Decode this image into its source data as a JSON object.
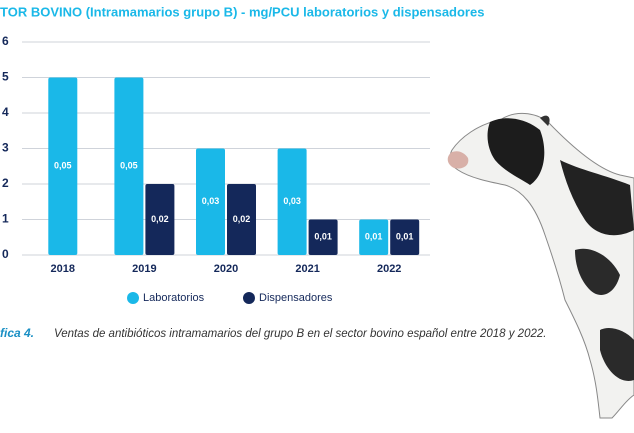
{
  "chart_data": {
    "type": "bar",
    "title": "TOR BOVINO (Intramamarios grupo B) - mg/PCU laboratorios y dispensadores",
    "categories": [
      "2018",
      "2019",
      "2020",
      "2021",
      "2022"
    ],
    "series": [
      {
        "name": "Laboratorios",
        "color": "#1ab8e8",
        "values": [
          0.05,
          0.05,
          0.03,
          0.03,
          0.01
        ],
        "value_labels": [
          "0,05",
          "0,05",
          "0,03",
          "0,03",
          "0,01"
        ]
      },
      {
        "name": "Dispensadores",
        "color": "#14285a",
        "values": [
          null,
          0.02,
          0.02,
          0.01,
          0.01
        ],
        "value_labels": [
          null,
          "0,02",
          "0,02",
          "0,01",
          "0,01"
        ]
      }
    ],
    "ylim": [
      0,
      0.06
    ],
    "yticks": [
      {
        "value": 0,
        "label": "0"
      },
      {
        "value": 0.01,
        "label": "1"
      },
      {
        "value": 0.02,
        "label": "2"
      },
      {
        "value": 0.03,
        "label": "3"
      },
      {
        "value": 0.04,
        "label": "4"
      },
      {
        "value": 0.05,
        "label": "5"
      },
      {
        "value": 0.06,
        "label": "6"
      }
    ],
    "grid": true,
    "caption_label": "fica 4.",
    "caption": "Ventas de antibióticos intramamarios del grupo B en el sector bovino español entre 2018 y 2022."
  }
}
